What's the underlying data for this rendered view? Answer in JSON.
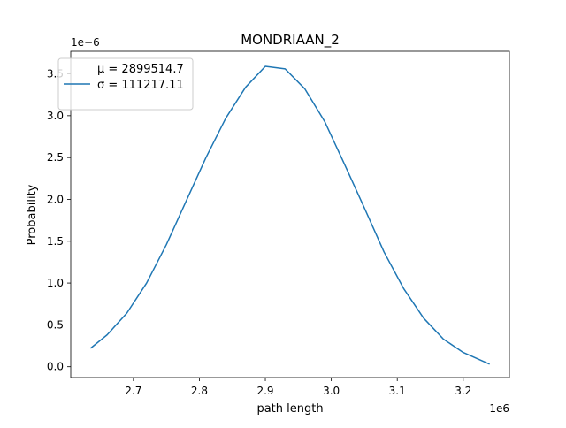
{
  "chart_data": {
    "type": "line",
    "title": "MONDRIAAN_2",
    "xlabel": "path length",
    "ylabel": "Probability",
    "x_offset_label": "1e6",
    "y_offset_label": "1e−6",
    "xlim": [
      2.605,
      3.27
    ],
    "ylim": [
      -0.13,
      3.77
    ],
    "x_ticks": [
      2.7,
      2.8,
      2.9,
      3.0,
      3.1,
      3.2
    ],
    "x_tick_labels": [
      "2.7",
      "2.8",
      "2.9",
      "3.0",
      "3.1",
      "3.2"
    ],
    "y_ticks": [
      0.0,
      0.5,
      1.0,
      1.5,
      2.0,
      2.5,
      3.0,
      3.5
    ],
    "y_tick_labels": [
      "0.0",
      "0.5",
      "1.0",
      "1.5",
      "2.0",
      "2.5",
      "3.0",
      "3.5"
    ],
    "grid": false,
    "legend_position": "top-left",
    "series": [
      {
        "name_mu": "μ = 2899514.7",
        "name_sigma": "σ = 111217.11",
        "color": "#1f77b4",
        "x": [
          2.635,
          2.66,
          2.69,
          2.72,
          2.75,
          2.78,
          2.81,
          2.84,
          2.87,
          2.9,
          2.93,
          2.96,
          2.99,
          3.02,
          3.05,
          3.08,
          3.11,
          3.14,
          3.17,
          3.2,
          3.24
        ],
        "y": [
          0.22,
          0.38,
          0.64,
          1.0,
          1.46,
          1.98,
          2.5,
          2.97,
          3.34,
          3.59,
          3.56,
          3.32,
          2.93,
          2.42,
          1.9,
          1.37,
          0.93,
          0.58,
          0.33,
          0.17,
          0.03
        ]
      }
    ]
  }
}
